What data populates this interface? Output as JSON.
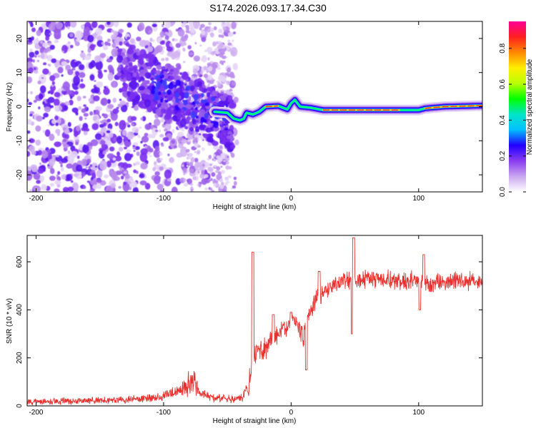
{
  "figure_title": "S174.2026.093.17.34.C30",
  "chart_data": [
    {
      "type": "heatmap",
      "name": "spectrogram",
      "xlabel": "Height of straight line (km)",
      "ylabel": "Frequency (Hz)",
      "xlim": [
        -207,
        150
      ],
      "ylim": [
        -25,
        25
      ],
      "x_ticks": [
        -200,
        -100,
        0,
        100
      ],
      "y_ticks": [
        -20,
        -10,
        0,
        10,
        20
      ],
      "colorbar": {
        "label": "Normalized spectral amplitude",
        "range": [
          0.0,
          0.95
        ],
        "ticks": [
          "0.0",
          "0.2",
          "0.4",
          "0.6",
          "0.8"
        ],
        "tick_values": [
          0.0,
          0.2,
          0.4,
          0.6,
          0.8
        ],
        "colormap": [
          "#ffffff",
          "#c9a6f0",
          "#8a3df0",
          "#2200ff",
          "#00bfff",
          "#00e5c8",
          "#00ff00",
          "#b8ff00",
          "#ffee00",
          "#ff8800",
          "#ff2020",
          "#ff0099"
        ]
      },
      "signal_line": [
        [
          -60,
          -1.5
        ],
        [
          -50,
          -1.8
        ],
        [
          -45,
          -3.5
        ],
        [
          -40,
          -4.0
        ],
        [
          -37,
          -3.5
        ],
        [
          -35,
          -1.8
        ],
        [
          -30,
          -2.3
        ],
        [
          -25,
          -1.5
        ],
        [
          -20,
          0.0
        ],
        [
          -10,
          0.2
        ],
        [
          -3,
          -0.8
        ],
        [
          0,
          1.0
        ],
        [
          3,
          2.0
        ],
        [
          7,
          0.0
        ],
        [
          15,
          -0.3
        ],
        [
          25,
          -1.0
        ],
        [
          50,
          -1.0
        ],
        [
          80,
          -1.0
        ],
        [
          100,
          -1.0
        ],
        [
          105,
          -0.5
        ],
        [
          120,
          0.0
        ],
        [
          150,
          0.3
        ]
      ],
      "hot_segments": [
        [
          -20,
          -10
        ],
        [
          25,
          85
        ],
        [
          105,
          150
        ]
      ]
    },
    {
      "type": "line",
      "name": "snr",
      "xlabel": "Height of straight line (km)",
      "ylabel": "SNR (10 * v/v)",
      "xlim": [
        -207,
        150
      ],
      "ylim": [
        0,
        710
      ],
      "x_ticks": [
        -200,
        -100,
        0,
        100
      ],
      "y_ticks": [
        0,
        200,
        400,
        600
      ],
      "color": "#e8312e",
      "trend": [
        [
          -207,
          18
        ],
        [
          -150,
          22
        ],
        [
          -110,
          32
        ],
        [
          -90,
          55
        ],
        [
          -75,
          110
        ],
        [
          -72,
          50
        ],
        [
          -60,
          32
        ],
        [
          -40,
          30
        ],
        [
          -33,
          80
        ],
        [
          -30,
          200
        ],
        [
          -25,
          230
        ],
        [
          -15,
          280
        ],
        [
          -5,
          320
        ],
        [
          2,
          360
        ],
        [
          10,
          290
        ],
        [
          15,
          400
        ],
        [
          20,
          445
        ],
        [
          25,
          470
        ],
        [
          35,
          510
        ],
        [
          45,
          520
        ],
        [
          60,
          530
        ],
        [
          100,
          520
        ],
        [
          110,
          510
        ],
        [
          150,
          525
        ]
      ],
      "spikes": [
        [
          -30,
          640
        ],
        [
          -14,
          380
        ],
        [
          0,
          390
        ],
        [
          12,
          150
        ],
        [
          22,
          560
        ],
        [
          48,
          300
        ],
        [
          49,
          700
        ],
        [
          101,
          400
        ],
        [
          104,
          630
        ]
      ]
    }
  ]
}
